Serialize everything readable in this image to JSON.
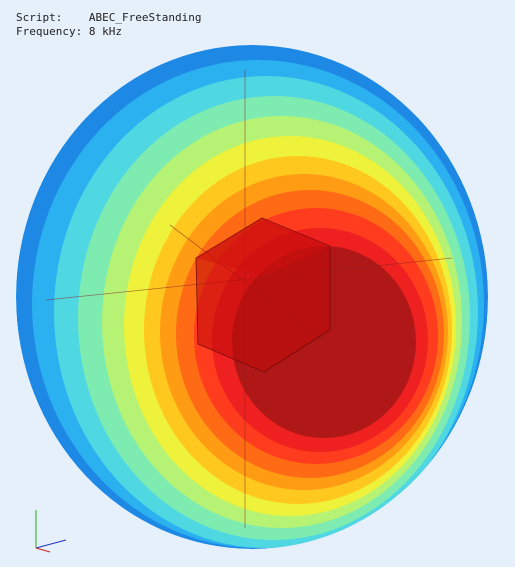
{
  "header": {
    "script_label": "Script:",
    "script_name": "ABEC_FreeStanding",
    "frequency": "Frequency: 8 kHz"
  }
}
